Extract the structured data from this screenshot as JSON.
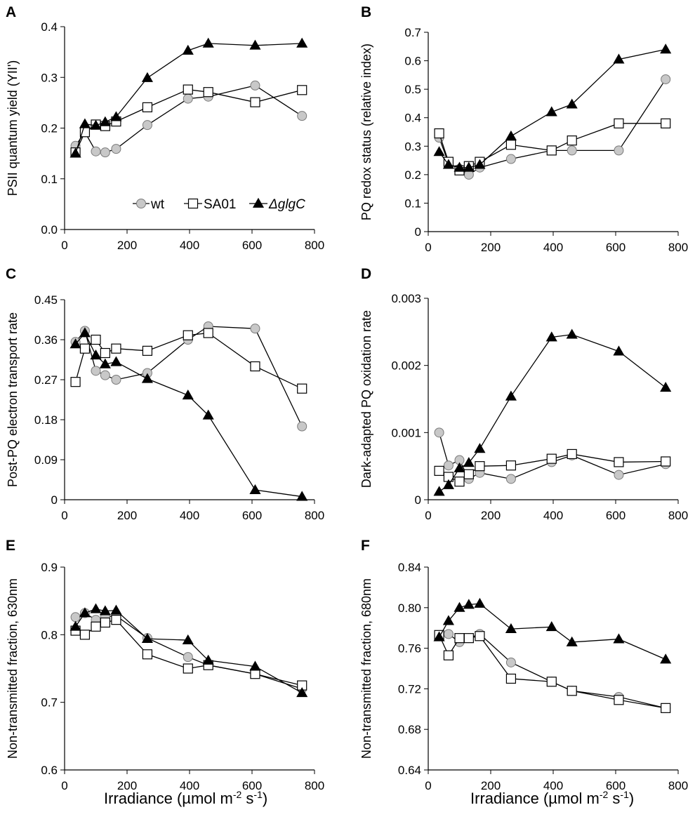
{
  "figure": {
    "x_axis_title": "Irradiance (µmol m",
    "x_axis_exp1": "-2",
    "x_axis_mid": " s",
    "x_axis_exp2": "-1",
    "x_axis_close": ")"
  },
  "legend": {
    "items": [
      {
        "key": "wt",
        "label": "wt",
        "marker": "circle",
        "italic": false
      },
      {
        "key": "SA01",
        "label": "SA01",
        "marker": "square",
        "italic": false
      },
      {
        "key": "glgC",
        "label": "ΔglgC",
        "marker": "triangle",
        "italic": true
      }
    ]
  },
  "colors": {
    "wt_fill": "#c8c8c8",
    "wt_stroke": "#7a7a7a",
    "SA01_fill": "#ffffff",
    "SA01_stroke": "#000000",
    "glgC_fill": "#000000",
    "glgC_stroke": "#000000",
    "axis": "#000000"
  },
  "chart_data": [
    {
      "type": "line",
      "panel": "A",
      "ylabel": "PSII quantum yield (YII')",
      "xlim": [
        0,
        800
      ],
      "ylim": [
        0,
        0.4
      ],
      "xticks": [
        0,
        200,
        400,
        600,
        800
      ],
      "yticks": [
        0,
        0.1,
        0.2,
        0.3,
        0.4
      ],
      "ytick_labels": [
        "0.0",
        "0.1",
        "0.2",
        "0.3",
        "0.4"
      ],
      "legend": true,
      "series": [
        {
          "name": "wt",
          "x": [
            35,
            65,
            100,
            130,
            165,
            265,
            395,
            460,
            610,
            760
          ],
          "values": [
            0.165,
            0.192,
            0.154,
            0.152,
            0.159,
            0.206,
            0.258,
            0.262,
            0.284,
            0.224
          ]
        },
        {
          "name": "SA01",
          "x": [
            35,
            65,
            100,
            130,
            165,
            265,
            395,
            460,
            610,
            760
          ],
          "values": [
            0.152,
            0.192,
            0.207,
            0.204,
            0.213,
            0.241,
            0.276,
            0.271,
            0.251,
            0.275
          ]
        },
        {
          "name": "ΔglgC",
          "x": [
            35,
            65,
            100,
            130,
            165,
            265,
            395,
            460,
            610,
            760
          ],
          "values": [
            0.15,
            0.208,
            0.205,
            0.212,
            0.222,
            0.299,
            0.353,
            0.367,
            0.363,
            0.367
          ]
        }
      ]
    },
    {
      "type": "line",
      "panel": "B",
      "ylabel": "PQ redox status (relative index)",
      "xlim": [
        0,
        800
      ],
      "ylim": [
        0,
        0.7
      ],
      "xticks": [
        0,
        200,
        400,
        600,
        800
      ],
      "yticks": [
        0,
        0.1,
        0.2,
        0.3,
        0.4,
        0.5,
        0.6,
        0.7
      ],
      "ytick_labels": [
        "0",
        "0.1",
        "0.2",
        "0.3",
        "0.4",
        "0.5",
        "0.6",
        "0.7"
      ],
      "legend": false,
      "series": [
        {
          "name": "wt",
          "x": [
            35,
            65,
            100,
            130,
            165,
            265,
            395,
            460,
            610,
            760
          ],
          "values": [
            0.33,
            0.24,
            0.22,
            0.2,
            0.225,
            0.255,
            0.285,
            0.285,
            0.285,
            0.535
          ]
        },
        {
          "name": "SA01",
          "x": [
            35,
            65,
            100,
            130,
            165,
            265,
            395,
            460,
            610,
            760
          ],
          "values": [
            0.345,
            0.245,
            0.215,
            0.23,
            0.245,
            0.305,
            0.285,
            0.32,
            0.38,
            0.38
          ]
        },
        {
          "name": "ΔglgC",
          "x": [
            35,
            65,
            100,
            130,
            165,
            265,
            395,
            460,
            610,
            760
          ],
          "values": [
            0.28,
            0.235,
            0.225,
            0.225,
            0.235,
            0.335,
            0.42,
            0.447,
            0.605,
            0.64
          ]
        }
      ]
    },
    {
      "type": "line",
      "panel": "C",
      "ylabel": "Post-PQ electron transport rate",
      "xlim": [
        0,
        800
      ],
      "ylim": [
        0,
        0.45
      ],
      "xticks": [
        0,
        200,
        400,
        600,
        800
      ],
      "yticks": [
        0,
        0.09,
        0.18,
        0.27,
        0.36,
        0.45
      ],
      "ytick_labels": [
        "0",
        "0.09",
        "0.18",
        "0.27",
        "0.36",
        "0.45"
      ],
      "legend": false,
      "series": [
        {
          "name": "wt",
          "x": [
            35,
            65,
            100,
            130,
            165,
            265,
            395,
            460,
            610,
            760
          ],
          "values": [
            0.355,
            0.38,
            0.29,
            0.28,
            0.27,
            0.285,
            0.36,
            0.39,
            0.385,
            0.165
          ]
        },
        {
          "name": "SA01",
          "x": [
            35,
            65,
            100,
            130,
            165,
            265,
            395,
            460,
            610,
            760
          ],
          "values": [
            0.265,
            0.34,
            0.36,
            0.33,
            0.34,
            0.335,
            0.37,
            0.375,
            0.3,
            0.25
          ]
        },
        {
          "name": "ΔglgC",
          "x": [
            35,
            65,
            100,
            130,
            165,
            265,
            395,
            460,
            610,
            760
          ],
          "values": [
            0.35,
            0.375,
            0.325,
            0.305,
            0.31,
            0.272,
            0.235,
            0.19,
            0.022,
            0.007
          ]
        }
      ]
    },
    {
      "type": "line",
      "panel": "D",
      "ylabel": "Dark-adapted PQ oxidation rate",
      "xlim": [
        0,
        800
      ],
      "ylim": [
        0,
        0.003
      ],
      "xticks": [
        0,
        200,
        400,
        600,
        800
      ],
      "yticks": [
        0,
        0.001,
        0.002,
        0.003
      ],
      "ytick_labels": [
        "0",
        "0.001",
        "0.002",
        "0.003"
      ],
      "legend": false,
      "series": [
        {
          "name": "wt",
          "x": [
            35,
            65,
            100,
            130,
            165,
            265,
            395,
            460,
            610,
            760
          ],
          "values": [
            0.001,
            0.00051,
            0.00059,
            0.00031,
            0.0004,
            0.00031,
            0.00056,
            0.00066,
            0.00037,
            0.00053
          ]
        },
        {
          "name": "SA01",
          "x": [
            35,
            65,
            100,
            130,
            165,
            265,
            395,
            460,
            610,
            760
          ],
          "values": [
            0.00043,
            0.00034,
            0.00027,
            0.00038,
            0.0005,
            0.00051,
            0.00061,
            0.00068,
            0.00056,
            0.00057
          ]
        },
        {
          "name": "ΔglgC",
          "x": [
            35,
            65,
            100,
            130,
            165,
            265,
            395,
            460,
            610,
            760
          ],
          "values": [
            0.00012,
            0.00022,
            0.00047,
            0.00055,
            0.00076,
            0.00154,
            0.00242,
            0.00246,
            0.00221,
            0.00167
          ]
        }
      ]
    },
    {
      "type": "line",
      "panel": "E",
      "ylabel": "Non-transmitted fraction, 630nm",
      "xlim": [
        0,
        800
      ],
      "ylim": [
        0.6,
        0.9
      ],
      "xticks": [
        0,
        200,
        400,
        600,
        800
      ],
      "yticks": [
        0.6,
        0.7,
        0.8,
        0.9
      ],
      "ytick_labels": [
        "0.6",
        "0.7",
        "0.8",
        "0.9"
      ],
      "legend": false,
      "series": [
        {
          "name": "wt",
          "x": [
            35,
            65,
            100,
            130,
            165,
            265,
            395,
            460,
            610,
            760
          ],
          "values": [
            0.826,
            0.832,
            0.822,
            0.826,
            0.828,
            0.795,
            0.767,
            0.755,
            0.742,
            0.72
          ]
        },
        {
          "name": "SA01",
          "x": [
            35,
            65,
            100,
            130,
            165,
            265,
            395,
            460,
            610,
            760
          ],
          "values": [
            0.806,
            0.8,
            0.812,
            0.818,
            0.822,
            0.771,
            0.75,
            0.755,
            0.742,
            0.725
          ]
        },
        {
          "name": "ΔglgC",
          "x": [
            35,
            65,
            100,
            130,
            165,
            265,
            395,
            460,
            610,
            760
          ],
          "values": [
            0.812,
            0.832,
            0.838,
            0.835,
            0.836,
            0.794,
            0.792,
            0.762,
            0.753,
            0.714
          ]
        }
      ]
    },
    {
      "type": "line",
      "panel": "F",
      "ylabel": "Non-transmitted fraction, 680nm",
      "xlim": [
        0,
        800
      ],
      "ylim": [
        0.64,
        0.84
      ],
      "xticks": [
        0,
        200,
        400,
        600,
        800
      ],
      "yticks": [
        0.64,
        0.68,
        0.72,
        0.76,
        0.8,
        0.84
      ],
      "ytick_labels": [
        "0.64",
        "0.68",
        "0.72",
        "0.76",
        "0.80",
        "0.84"
      ],
      "legend": false,
      "series": [
        {
          "name": "wt",
          "x": [
            35,
            65,
            100,
            130,
            165,
            265,
            395,
            460,
            610,
            760
          ],
          "values": [
            0.772,
            0.774,
            0.766,
            0.77,
            0.774,
            0.746,
            0.727,
            0.718,
            0.712,
            0.701
          ]
        },
        {
          "name": "SA01",
          "x": [
            35,
            65,
            100,
            130,
            165,
            265,
            395,
            460,
            610,
            760
          ],
          "values": [
            0.773,
            0.753,
            0.77,
            0.77,
            0.772,
            0.73,
            0.727,
            0.718,
            0.709,
            0.701
          ]
        },
        {
          "name": "ΔglgC",
          "x": [
            35,
            65,
            100,
            130,
            165,
            265,
            395,
            460,
            610,
            760
          ],
          "values": [
            0.771,
            0.787,
            0.8,
            0.803,
            0.804,
            0.779,
            0.781,
            0.766,
            0.769,
            0.749
          ]
        }
      ]
    }
  ]
}
